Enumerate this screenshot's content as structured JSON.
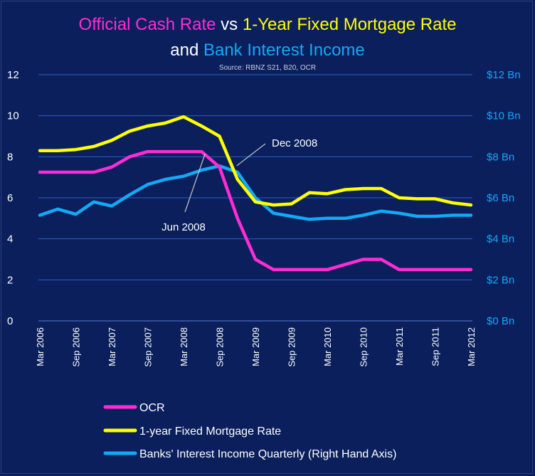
{
  "colors": {
    "background": "#0a1f5c",
    "grid": "#2c5fc4",
    "ocr": "#ff2bd6",
    "mortgage": "#ffff00",
    "income": "#14a9f5",
    "white": "#ffffff"
  },
  "chart_data": {
    "type": "line",
    "title": {
      "part1": "Official Cash Rate",
      "part2": " vs ",
      "part3": "1-Year Fixed Mortgage Rate",
      "part4": "and ",
      "part5": "Bank Interest Income"
    },
    "source": "Source: RBNZ S21, B20, OCR",
    "left_axis": {
      "ylim": [
        0,
        12
      ],
      "ticks": [
        "0",
        "2",
        "4",
        "6",
        "8",
        "10",
        "12"
      ]
    },
    "right_axis": {
      "ylim": [
        0,
        12
      ],
      "ticks": [
        "$0 Bn",
        "$2 Bn",
        "$4 Bn",
        "$6 Bn",
        "$8 Bn",
        "$10 Bn",
        "$12 Bn"
      ]
    },
    "x_tick_labels": [
      "Mar 2006",
      "Sep 2006",
      "Mar 2007",
      "Sep 2007",
      "Mar 2008",
      "Sep 2008",
      "Mar 2009",
      "Sep 2009",
      "Mar 2010",
      "Sep 2010",
      "Mar 2011",
      "Sep 2011",
      "Mar 2012"
    ],
    "x": [
      "Mar 2006",
      "Jun 2006",
      "Sep 2006",
      "Dec 2006",
      "Mar 2007",
      "Jun 2007",
      "Sep 2007",
      "Dec 2007",
      "Mar 2008",
      "Jun 2008",
      "Sep 2008",
      "Dec 2008",
      "Mar 2009",
      "Jun 2009",
      "Sep 2009",
      "Dec 2009",
      "Mar 2010",
      "Jun 2010",
      "Sep 2010",
      "Dec 2010",
      "Mar 2011",
      "Jun 2011",
      "Sep 2011",
      "Dec 2011",
      "Mar 2012"
    ],
    "grid": true,
    "legend_position": "bottom-left",
    "series": [
      {
        "name": "OCR",
        "axis": "left",
        "values": [
          7.25,
          7.25,
          7.25,
          7.25,
          7.5,
          8.0,
          8.25,
          8.25,
          8.25,
          8.25,
          7.5,
          5.0,
          3.0,
          2.5,
          2.5,
          2.5,
          2.5,
          2.75,
          3.0,
          3.0,
          2.5,
          2.5,
          2.5,
          2.5,
          2.5
        ]
      },
      {
        "name": "1-year Fixed Mortgage Rate",
        "axis": "left",
        "values": [
          8.3,
          8.3,
          8.35,
          8.5,
          8.8,
          9.25,
          9.5,
          9.65,
          9.95,
          9.5,
          9.0,
          6.9,
          5.8,
          5.65,
          5.7,
          6.25,
          6.2,
          6.4,
          6.45,
          6.45,
          6.0,
          5.95,
          5.95,
          5.75,
          5.65
        ]
      },
      {
        "name": "Banks' Interest Income Quarterly (Right Hand Axis)",
        "axis": "right",
        "values": [
          5.15,
          5.45,
          5.2,
          5.8,
          5.6,
          6.15,
          6.65,
          6.9,
          7.05,
          7.35,
          7.55,
          7.25,
          6.0,
          5.25,
          5.1,
          4.95,
          5.0,
          5.0,
          5.15,
          5.35,
          5.25,
          5.1,
          5.1,
          5.15,
          5.15
        ]
      }
    ],
    "annotations": [
      {
        "text": "Dec 2008",
        "target": "Dec 2008"
      },
      {
        "text": "Jun 2008",
        "target": "Jun 2008"
      }
    ]
  }
}
